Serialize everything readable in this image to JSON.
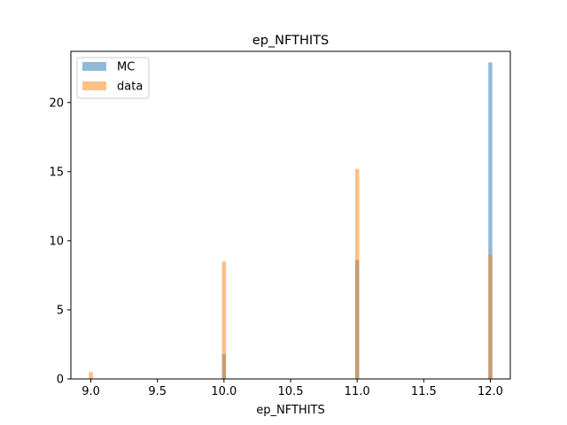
{
  "chart_data": {
    "type": "bar",
    "title": "ep_NFTHITS",
    "xlabel": "ep_NFTHITS",
    "ylabel": "",
    "xlim": [
      8.85,
      12.15
    ],
    "ylim": [
      0,
      23.7
    ],
    "xticks": [
      9.0,
      9.5,
      10.0,
      10.5,
      11.0,
      11.5,
      12.0
    ],
    "xtick_labels": [
      "9.0",
      "9.5",
      "10.0",
      "10.5",
      "11.0",
      "11.5",
      "12.0"
    ],
    "yticks": [
      0,
      5,
      10,
      15,
      20
    ],
    "ytick_labels": [
      "0",
      "5",
      "10",
      "15",
      "20"
    ],
    "bar_width": 0.03,
    "grid": false,
    "legend": "top-left",
    "series": [
      {
        "name": "MC",
        "color": "#1f77b4",
        "alpha": 0.5,
        "x": [
          9.0,
          10.0,
          11.0,
          12.0
        ],
        "values": [
          0,
          1.8,
          8.6,
          22.9
        ]
      },
      {
        "name": "data",
        "color": "#ff7f0e",
        "alpha": 0.5,
        "x": [
          9.0,
          10.0,
          11.0,
          12.0
        ],
        "values": [
          0.5,
          8.5,
          15.2,
          9.0
        ]
      }
    ]
  }
}
